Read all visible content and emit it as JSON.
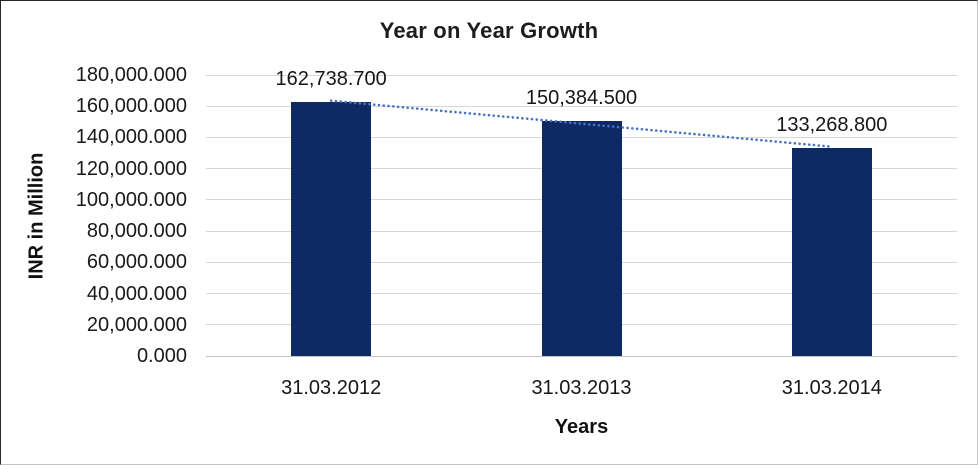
{
  "chart_data": {
    "type": "bar",
    "title": "Year on Year Growth",
    "xlabel": "Years",
    "ylabel": "INR in Million",
    "categories": [
      "31.03.2012",
      "31.03.2013",
      "31.03.2014"
    ],
    "values": [
      162738.7,
      150384.5,
      133268.8
    ],
    "data_labels": [
      "162,738.700",
      "150,384.500",
      "133,268.800"
    ],
    "y_tick_labels": [
      "180,000.000",
      "160,000.000",
      "140,000.000",
      "120,000.000",
      "100,000.000",
      "80,000.000",
      "60,000.000",
      "40,000.000",
      "20,000.000",
      "0.000"
    ],
    "ylim": [
      0,
      180000
    ],
    "y_tick_step": 20000,
    "grid": "horizontal",
    "legend": "none",
    "trendline": {
      "type": "linear",
      "style": "dotted",
      "color": "#4472c4"
    },
    "colors": {
      "bar": "#0e2a64",
      "gridline": "#d8d8d8",
      "zero_axis": "#c3c3c3",
      "text": "#161616",
      "background": "#ffffff"
    }
  }
}
